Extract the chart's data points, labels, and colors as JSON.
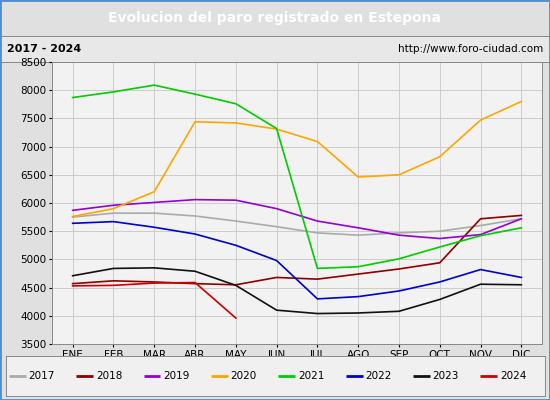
{
  "title": "Evolucion del paro registrado en Estepona",
  "subtitle_left": "2017 - 2024",
  "subtitle_right": "http://www.foro-ciudad.com",
  "ylim": [
    3500,
    8500
  ],
  "yticks": [
    3500,
    4000,
    4500,
    5000,
    5500,
    6000,
    6500,
    7000,
    7500,
    8000,
    8500
  ],
  "months": [
    "ENE",
    "FEB",
    "MAR",
    "ABR",
    "MAY",
    "JUN",
    "JUL",
    "AGO",
    "SEP",
    "OCT",
    "NOV",
    "DIC"
  ],
  "series": {
    "2017": {
      "color": "#aaaaaa",
      "data": [
        5750,
        5820,
        5820,
        5770,
        5680,
        5580,
        5470,
        5430,
        5470,
        5500,
        5600,
        5720
      ]
    },
    "2018": {
      "color": "#8b0000",
      "data": [
        4570,
        4620,
        4600,
        4570,
        4550,
        4680,
        4650,
        4740,
        4830,
        4940,
        5720,
        5780
      ]
    },
    "2019": {
      "color": "#9400d3",
      "data": [
        5870,
        5960,
        6010,
        6060,
        6050,
        5900,
        5680,
        5560,
        5430,
        5370,
        5440,
        5720
      ]
    },
    "2020": {
      "color": "#ffa500",
      "data": [
        5760,
        5900,
        6200,
        7440,
        7420,
        7310,
        7090,
        6460,
        6500,
        6820,
        7470,
        7800
      ]
    },
    "2021": {
      "color": "#00cc00",
      "data": [
        7870,
        7970,
        8090,
        7930,
        7760,
        7320,
        4840,
        4870,
        5010,
        5220,
        5420,
        5560
      ]
    },
    "2022": {
      "color": "#0000cc",
      "data": [
        5640,
        5670,
        5570,
        5450,
        5250,
        4980,
        4300,
        4340,
        4440,
        4600,
        4820,
        4680
      ]
    },
    "2023": {
      "color": "#111111",
      "data": [
        4710,
        4840,
        4850,
        4790,
        4540,
        4100,
        4040,
        4050,
        4080,
        4290,
        4560,
        4550
      ]
    },
    "2024": {
      "color": "#cc0000",
      "data": [
        4530,
        4540,
        4580,
        4590,
        3960,
        null,
        null,
        null,
        null,
        null,
        null,
        null
      ]
    }
  },
  "title_bg_color": "#4d8fcc",
  "title_text_color": "#ffffff",
  "subtitle_bg_color": "#e8e8e8",
  "plot_bg_color": "#f2f2f2",
  "fig_bg_color": "#e0e0e0",
  "grid_color": "#cccccc",
  "legend_bg_color": "#f0f0f0"
}
